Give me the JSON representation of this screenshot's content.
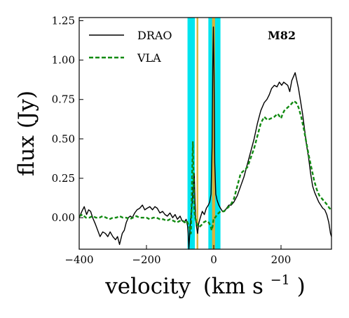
{
  "chart_data": {
    "type": "line",
    "title": "M82",
    "xlabel": "velocity",
    "xunit_base": "(km s",
    "xunit_exp": "−1",
    "xunit_close": ")",
    "ylabel": "flux (Jy)",
    "xlim": [
      -400,
      350
    ],
    "ylim": [
      -0.2,
      1.27
    ],
    "x_ticks": [
      -400,
      -200,
      0,
      200
    ],
    "x_tick_labels": [
      "−400",
      "−200",
      "0",
      "200"
    ],
    "y_ticks": [
      0.0,
      0.25,
      0.5,
      0.75,
      1.0,
      1.25
    ],
    "y_tick_labels": [
      "0.00",
      "0.25",
      "0.50",
      "0.75",
      "1.00",
      "1.25"
    ],
    "legend_position": "top-left",
    "shaded_bands": [
      {
        "color": "#00e5ee",
        "range": [
          -78,
          -56
        ]
      },
      {
        "color": "#00e5ee",
        "range": [
          -16,
          20
        ]
      },
      {
        "color": "#d9b23a",
        "range": [
          -51,
          -46
        ]
      },
      {
        "color": "#d9b23a",
        "range": [
          -5,
          4
        ]
      }
    ],
    "series": [
      {
        "name": "DRAO",
        "color": "#000000",
        "style": "solid",
        "points": [
          [
            -400,
            0.0
          ],
          [
            -392,
            0.04
          ],
          [
            -385,
            0.07
          ],
          [
            -378,
            0.02
          ],
          [
            -372,
            0.05
          ],
          [
            -366,
            0.04
          ],
          [
            -360,
            0.0
          ],
          [
            -352,
            -0.04
          ],
          [
            -345,
            -0.08
          ],
          [
            -338,
            -0.12
          ],
          [
            -330,
            -0.09
          ],
          [
            -322,
            -0.1
          ],
          [
            -315,
            -0.12
          ],
          [
            -308,
            -0.09
          ],
          [
            -300,
            -0.12
          ],
          [
            -292,
            -0.14
          ],
          [
            -286,
            -0.12
          ],
          [
            -280,
            -0.17
          ],
          [
            -272,
            -0.1
          ],
          [
            -266,
            -0.08
          ],
          [
            -260,
            -0.03
          ],
          [
            -254,
            0.0
          ],
          [
            -248,
            0.01
          ],
          [
            -242,
            0.0
          ],
          [
            -235,
            0.03
          ],
          [
            -228,
            0.05
          ],
          [
            -220,
            0.06
          ],
          [
            -212,
            0.08
          ],
          [
            -205,
            0.05
          ],
          [
            -198,
            0.06
          ],
          [
            -190,
            0.07
          ],
          [
            -182,
            0.05
          ],
          [
            -175,
            0.07
          ],
          [
            -168,
            0.06
          ],
          [
            -160,
            0.03
          ],
          [
            -152,
            0.04
          ],
          [
            -145,
            0.02
          ],
          [
            -138,
            0.01
          ],
          [
            -130,
            0.03
          ],
          [
            -122,
            0.0
          ],
          [
            -115,
            0.02
          ],
          [
            -108,
            -0.01
          ],
          [
            -100,
            0.01
          ],
          [
            -94,
            -0.02
          ],
          [
            -88,
            -0.03
          ],
          [
            -82,
            -0.01
          ],
          [
            -78,
            -0.05
          ],
          [
            -76,
            -0.1
          ],
          [
            -74,
            -0.2
          ],
          [
            -70,
            -0.05
          ],
          [
            -66,
            0.05
          ],
          [
            -63,
            0.12
          ],
          [
            -60,
            0.22
          ],
          [
            -58,
            0.28
          ],
          [
            -56,
            0.12
          ],
          [
            -54,
            0.0
          ],
          [
            -51,
            -0.06
          ],
          [
            -48,
            -0.1
          ],
          [
            -45,
            -0.04
          ],
          [
            -40,
            0.0
          ],
          [
            -34,
            0.04
          ],
          [
            -28,
            0.02
          ],
          [
            -22,
            0.06
          ],
          [
            -16,
            0.08
          ],
          [
            -12,
            0.1
          ],
          [
            -8,
            0.15
          ],
          [
            -5,
            0.45
          ],
          [
            -3,
            0.95
          ],
          [
            -1,
            1.21
          ],
          [
            1,
            0.9
          ],
          [
            3,
            0.35
          ],
          [
            6,
            0.15
          ],
          [
            10,
            0.11
          ],
          [
            15,
            0.08
          ],
          [
            20,
            0.06
          ],
          [
            26,
            0.04
          ],
          [
            32,
            0.04
          ],
          [
            38,
            0.06
          ],
          [
            45,
            0.08
          ],
          [
            52,
            0.08
          ],
          [
            60,
            0.1
          ],
          [
            70,
            0.14
          ],
          [
            80,
            0.2
          ],
          [
            90,
            0.26
          ],
          [
            100,
            0.34
          ],
          [
            110,
            0.42
          ],
          [
            120,
            0.5
          ],
          [
            130,
            0.6
          ],
          [
            140,
            0.68
          ],
          [
            150,
            0.73
          ],
          [
            158,
            0.75
          ],
          [
            165,
            0.78
          ],
          [
            172,
            0.82
          ],
          [
            180,
            0.84
          ],
          [
            188,
            0.83
          ],
          [
            195,
            0.86
          ],
          [
            202,
            0.84
          ],
          [
            208,
            0.86
          ],
          [
            214,
            0.85
          ],
          [
            220,
            0.84
          ],
          [
            226,
            0.8
          ],
          [
            232,
            0.87
          ],
          [
            238,
            0.9
          ],
          [
            242,
            0.92
          ],
          [
            246,
            0.88
          ],
          [
            252,
            0.82
          ],
          [
            258,
            0.74
          ],
          [
            264,
            0.66
          ],
          [
            270,
            0.56
          ],
          [
            276,
            0.46
          ],
          [
            282,
            0.38
          ],
          [
            288,
            0.28
          ],
          [
            294,
            0.2
          ],
          [
            300,
            0.16
          ],
          [
            306,
            0.13
          ],
          [
            312,
            0.1
          ],
          [
            318,
            0.08
          ],
          [
            324,
            0.06
          ],
          [
            330,
            0.05
          ],
          [
            336,
            0.02
          ],
          [
            342,
            -0.03
          ],
          [
            347,
            -0.1
          ],
          [
            350,
            -0.12
          ]
        ]
      },
      {
        "name": "VLA",
        "color": "#118a11",
        "style": "dashed",
        "points": [
          [
            -400,
            0.01
          ],
          [
            -390,
            0.02
          ],
          [
            -380,
            0.0
          ],
          [
            -370,
            0.0
          ],
          [
            -360,
            0.01
          ],
          [
            -350,
            0.0
          ],
          [
            -340,
            0.0
          ],
          [
            -330,
            0.01
          ],
          [
            -320,
            0.0
          ],
          [
            -310,
            -0.01
          ],
          [
            -300,
            0.0
          ],
          [
            -290,
            0.0
          ],
          [
            -280,
            0.01
          ],
          [
            -270,
            0.0
          ],
          [
            -260,
            0.0
          ],
          [
            -250,
            -0.01
          ],
          [
            -240,
            0.0
          ],
          [
            -230,
            0.01
          ],
          [
            -220,
            0.0
          ],
          [
            -210,
            0.0
          ],
          [
            -200,
            0.0
          ],
          [
            -190,
            -0.01
          ],
          [
            -180,
            0.0
          ],
          [
            -170,
            0.0
          ],
          [
            -160,
            -0.01
          ],
          [
            -150,
            -0.01
          ],
          [
            -140,
            -0.02
          ],
          [
            -130,
            -0.01
          ],
          [
            -120,
            -0.02
          ],
          [
            -110,
            -0.03
          ],
          [
            -100,
            -0.02
          ],
          [
            -92,
            -0.02
          ],
          [
            -86,
            -0.03
          ],
          [
            -80,
            -0.02
          ],
          [
            -76,
            -0.04
          ],
          [
            -72,
            -0.06
          ],
          [
            -68,
            -0.1
          ],
          [
            -66,
            0.05
          ],
          [
            -64,
            0.3
          ],
          [
            -62,
            0.48
          ],
          [
            -60,
            0.25
          ],
          [
            -58,
            0.05
          ],
          [
            -55,
            0.0
          ],
          [
            -50,
            -0.04
          ],
          [
            -44,
            -0.06
          ],
          [
            -38,
            -0.05
          ],
          [
            -30,
            -0.03
          ],
          [
            -22,
            -0.02
          ],
          [
            -15,
            -0.03
          ],
          [
            -10,
            -0.05
          ],
          [
            -6,
            -0.08
          ],
          [
            -3,
            -0.05
          ],
          [
            0,
            0.0
          ],
          [
            4,
            0.0
          ],
          [
            10,
            0.02
          ],
          [
            20,
            0.04
          ],
          [
            30,
            0.04
          ],
          [
            40,
            0.06
          ],
          [
            50,
            0.08
          ],
          [
            60,
            0.12
          ],
          [
            70,
            0.2
          ],
          [
            80,
            0.28
          ],
          [
            90,
            0.3
          ],
          [
            100,
            0.32
          ],
          [
            110,
            0.38
          ],
          [
            120,
            0.44
          ],
          [
            130,
            0.52
          ],
          [
            140,
            0.6
          ],
          [
            150,
            0.64
          ],
          [
            160,
            0.62
          ],
          [
            170,
            0.63
          ],
          [
            180,
            0.64
          ],
          [
            190,
            0.66
          ],
          [
            200,
            0.63
          ],
          [
            205,
            0.66
          ],
          [
            210,
            0.68
          ],
          [
            220,
            0.7
          ],
          [
            230,
            0.72
          ],
          [
            238,
            0.74
          ],
          [
            245,
            0.73
          ],
          [
            252,
            0.7
          ],
          [
            260,
            0.64
          ],
          [
            268,
            0.56
          ],
          [
            275,
            0.48
          ],
          [
            282,
            0.4
          ],
          [
            290,
            0.32
          ],
          [
            298,
            0.24
          ],
          [
            306,
            0.18
          ],
          [
            314,
            0.14
          ],
          [
            322,
            0.12
          ],
          [
            330,
            0.1
          ],
          [
            338,
            0.08
          ],
          [
            344,
            0.06
          ],
          [
            350,
            0.05
          ]
        ]
      }
    ]
  }
}
